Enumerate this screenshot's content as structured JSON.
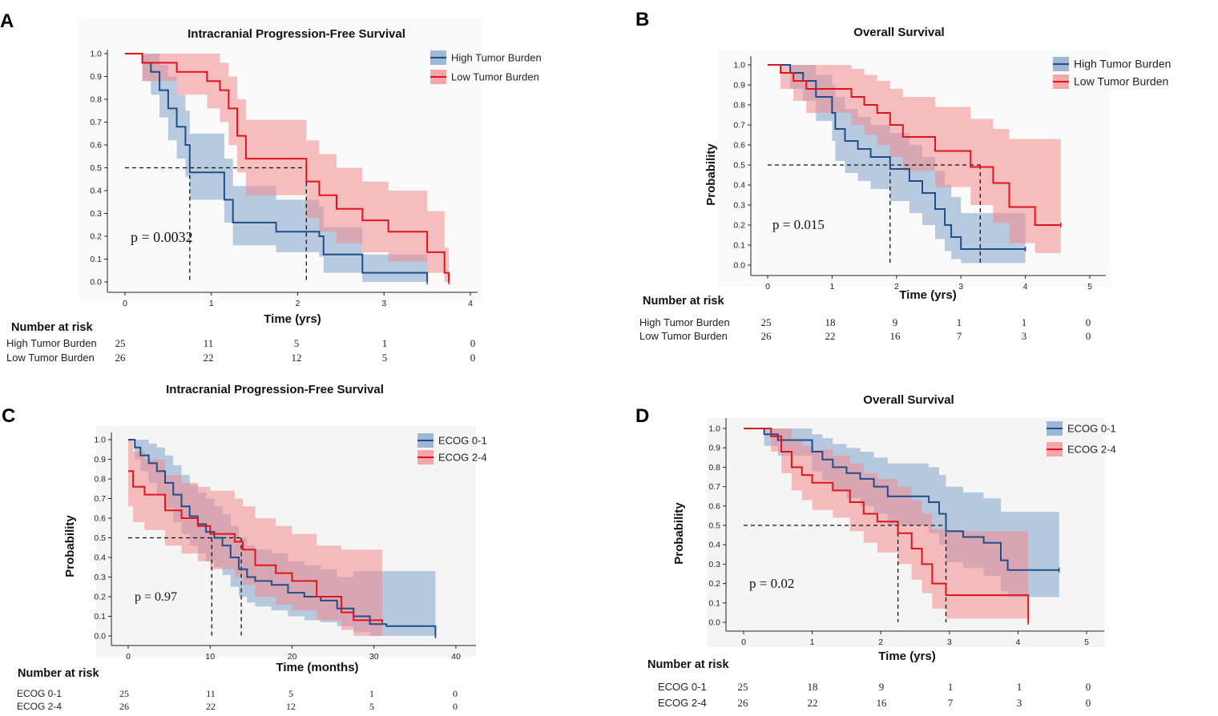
{
  "colors": {
    "blue": "#1f4e8c",
    "red": "#e0141b",
    "blue_band": "#7fa2c8",
    "red_band": "#f28b8e",
    "panel_bg": "#f5f5f5"
  },
  "number_at_risk_label": "Number at risk",
  "chart_data": [
    {
      "panel": "A",
      "type": "line",
      "title": "Intracranial Progression-Free Survival",
      "xlabel": "Time (yrs)",
      "ylabel": "",
      "xlim": [
        0,
        4
      ],
      "ylim": [
        0,
        1
      ],
      "xticks": [
        "0",
        "1",
        "2",
        "3",
        "4"
      ],
      "yticks": [
        "0.0",
        "0.1",
        "0.2",
        "0.3",
        "0.4",
        "0.5",
        "0.6",
        "0.7",
        "0.8",
        "0.9",
        "1.0"
      ],
      "grid": false,
      "shaded_background": false,
      "legend": [
        "High Tumor Burden",
        "Low Tumor Burden"
      ],
      "legend_position": "top-right",
      "pvalue": "p = 0.0032",
      "medians": [
        0.75,
        2.1
      ],
      "series": [
        {
          "name": "High Tumor Burden",
          "color": "blue",
          "x": [
            0,
            0.2,
            0.3,
            0.4,
            0.5,
            0.6,
            0.7,
            0.75,
            1.15,
            1.25,
            1.75,
            2.25,
            2.3,
            2.75,
            3.5
          ],
          "y": [
            1.0,
            0.96,
            0.92,
            0.84,
            0.76,
            0.68,
            0.6,
            0.48,
            0.36,
            0.26,
            0.22,
            0.2,
            0.12,
            0.04,
            0.0
          ],
          "lower": [
            1.0,
            0.88,
            0.82,
            0.72,
            0.62,
            0.54,
            0.46,
            0.36,
            0.26,
            0.16,
            0.13,
            0.11,
            0.04,
            0.0,
            0.0
          ],
          "upper": [
            1.0,
            1.0,
            1.0,
            0.95,
            0.9,
            0.82,
            0.75,
            0.65,
            0.54,
            0.42,
            0.36,
            0.33,
            0.24,
            0.12,
            0.1
          ]
        },
        {
          "name": "Low Tumor Burden",
          "color": "red",
          "x": [
            0,
            0.2,
            0.35,
            0.6,
            0.95,
            1.1,
            1.2,
            1.3,
            1.4,
            2.1,
            2.25,
            2.45,
            2.75,
            3.05,
            3.5,
            3.7,
            3.75
          ],
          "y": [
            1.0,
            0.96,
            0.96,
            0.92,
            0.88,
            0.84,
            0.76,
            0.64,
            0.54,
            0.44,
            0.38,
            0.32,
            0.27,
            0.22,
            0.13,
            0.04,
            0.0
          ],
          "lower": [
            1.0,
            0.88,
            0.88,
            0.82,
            0.76,
            0.7,
            0.6,
            0.48,
            0.38,
            0.28,
            0.22,
            0.17,
            0.13,
            0.09,
            0.04,
            0.0,
            0.0
          ],
          "upper": [
            1.0,
            1.0,
            1.0,
            1.0,
            1.0,
            0.96,
            0.9,
            0.8,
            0.71,
            0.62,
            0.56,
            0.5,
            0.44,
            0.4,
            0.31,
            0.15,
            0.12
          ]
        }
      ],
      "risk_table": {
        "times": [
          "0",
          "1",
          "2",
          "3",
          "4"
        ],
        "rows": [
          {
            "label": "High Tumor Burden",
            "values": [
              "25",
              "11",
              "5",
              "1",
              "0"
            ]
          },
          {
            "label": "Low Tumor Burden",
            "values": [
              "26",
              "22",
              "12",
              "5",
              "0"
            ]
          }
        ]
      }
    },
    {
      "panel": "B",
      "type": "line",
      "title": "Overall Survival",
      "xlabel": "Time (yrs)",
      "ylabel": "Probability",
      "xlim": [
        0,
        5
      ],
      "ylim": [
        0,
        1
      ],
      "xticks": [
        "0",
        "1",
        "2",
        "3",
        "4",
        "5"
      ],
      "yticks": [
        "0.0",
        "0.1",
        "0.2",
        "0.3",
        "0.4",
        "0.5",
        "0.6",
        "0.7",
        "0.8",
        "0.9",
        "1.0"
      ],
      "grid": false,
      "shaded_background": false,
      "legend": [
        "High Tumor Burden",
        "Low Tumor Burden"
      ],
      "legend_position": "top-right",
      "pvalue": "p = 0.015",
      "medians": [
        1.9,
        3.3
      ],
      "series": [
        {
          "name": "High Tumor Burden",
          "color": "blue",
          "x": [
            0,
            0.35,
            0.55,
            0.75,
            1.0,
            1.05,
            1.2,
            1.4,
            1.6,
            1.9,
            2.2,
            2.4,
            2.6,
            2.75,
            2.85,
            3.0,
            4.0
          ],
          "y": [
            1.0,
            0.96,
            0.92,
            0.84,
            0.76,
            0.68,
            0.62,
            0.58,
            0.54,
            0.48,
            0.42,
            0.36,
            0.28,
            0.2,
            0.14,
            0.08,
            0.08
          ],
          "lower": [
            1.0,
            0.88,
            0.82,
            0.72,
            0.62,
            0.52,
            0.46,
            0.42,
            0.38,
            0.32,
            0.26,
            0.2,
            0.13,
            0.07,
            0.03,
            0.01,
            0.01
          ],
          "upper": [
            1.0,
            1.0,
            1.0,
            0.95,
            0.9,
            0.84,
            0.78,
            0.74,
            0.7,
            0.66,
            0.6,
            0.54,
            0.47,
            0.4,
            0.34,
            0.26,
            0.26
          ]
        },
        {
          "name": "Low Tumor Burden",
          "color": "red",
          "x": [
            0,
            0.2,
            0.4,
            0.6,
            1.05,
            1.3,
            1.5,
            1.7,
            1.9,
            2.1,
            2.3,
            2.6,
            3.15,
            3.5,
            3.75,
            4.15,
            4.55
          ],
          "y": [
            1.0,
            0.96,
            0.92,
            0.88,
            0.88,
            0.84,
            0.8,
            0.76,
            0.7,
            0.64,
            0.64,
            0.57,
            0.49,
            0.41,
            0.29,
            0.2,
            0.2
          ],
          "lower": [
            1.0,
            0.88,
            0.82,
            0.76,
            0.76,
            0.7,
            0.65,
            0.6,
            0.54,
            0.47,
            0.47,
            0.39,
            0.3,
            0.21,
            0.11,
            0.06,
            0.06
          ],
          "upper": [
            1.0,
            1.0,
            1.0,
            1.0,
            1.0,
            0.98,
            0.95,
            0.92,
            0.88,
            0.84,
            0.84,
            0.79,
            0.73,
            0.68,
            0.63,
            0.63,
            0.63
          ]
        }
      ],
      "risk_table": {
        "times": [
          "0",
          "1",
          "2",
          "3",
          "4",
          "5"
        ],
        "rows": [
          {
            "label": "High Tumor Burden",
            "values": [
              "25",
              "18",
              "9",
              "1",
              "1",
              "0"
            ]
          },
          {
            "label": "Low Tumor Burden",
            "values": [
              "26",
              "22",
              "16",
              "7",
              "3",
              "0"
            ]
          }
        ]
      }
    },
    {
      "panel": "C",
      "type": "line",
      "title": "Intracranial Progression-Free Survival",
      "xlabel": "Time (months)",
      "ylabel": "Probability",
      "xlim": [
        0,
        40
      ],
      "ylim": [
        0,
        1
      ],
      "xticks": [
        "0",
        "10",
        "20",
        "30",
        "40"
      ],
      "yticks": [
        "0.0",
        "0.1",
        "0.2",
        "0.3",
        "0.4",
        "0.5",
        "0.6",
        "0.7",
        "0.8",
        "0.9",
        "1.0"
      ],
      "grid": false,
      "shaded_background": true,
      "legend": [
        "ECOG 0-1",
        "ECOG 2-4"
      ],
      "legend_position": "top-right",
      "pvalue": "p = 0.97",
      "medians": [
        10.2,
        13.8
      ],
      "series": [
        {
          "name": "ECOG 0-1",
          "color": "blue",
          "x": [
            0,
            0.8,
            1.5,
            2.5,
            3.5,
            4.5,
            5.5,
            6.5,
            7.5,
            8.5,
            9.5,
            10.5,
            11.5,
            12.5,
            13.5,
            14.5,
            15.5,
            17.5,
            19.5,
            21.5,
            23.5,
            25.5,
            27.5,
            29.5,
            31.5,
            37.5
          ],
          "y": [
            1.0,
            0.96,
            0.92,
            0.88,
            0.84,
            0.78,
            0.72,
            0.66,
            0.61,
            0.57,
            0.53,
            0.5,
            0.46,
            0.4,
            0.34,
            0.3,
            0.28,
            0.26,
            0.22,
            0.2,
            0.18,
            0.14,
            0.1,
            0.06,
            0.05,
            0.0
          ],
          "lower": [
            1.0,
            0.9,
            0.84,
            0.78,
            0.72,
            0.65,
            0.58,
            0.52,
            0.46,
            0.42,
            0.38,
            0.35,
            0.31,
            0.25,
            0.2,
            0.17,
            0.15,
            0.13,
            0.1,
            0.08,
            0.07,
            0.05,
            0.02,
            0.0,
            0.0,
            0.0
          ],
          "upper": [
            1.0,
            1.0,
            1.0,
            0.98,
            0.96,
            0.92,
            0.87,
            0.82,
            0.77,
            0.73,
            0.7,
            0.66,
            0.62,
            0.56,
            0.5,
            0.46,
            0.44,
            0.42,
            0.38,
            0.36,
            0.34,
            0.3,
            0.33,
            0.33,
            0.33,
            0.33
          ]
        },
        {
          "name": "ECOG 2-4",
          "color": "red",
          "x": [
            0,
            0.6,
            2.0,
            4.5,
            6.5,
            8.5,
            10.0,
            12.0,
            13.0,
            14.0,
            15.5,
            18.0,
            20.0,
            23.0,
            26.0,
            27.5,
            31.0
          ],
          "y": [
            0.84,
            0.76,
            0.72,
            0.64,
            0.6,
            0.56,
            0.52,
            0.52,
            0.48,
            0.44,
            0.36,
            0.32,
            0.28,
            0.2,
            0.12,
            0.08,
            0.07
          ],
          "lower": [
            0.66,
            0.58,
            0.54,
            0.46,
            0.42,
            0.38,
            0.34,
            0.34,
            0.3,
            0.26,
            0.2,
            0.16,
            0.13,
            0.08,
            0.03,
            0.0,
            0.0
          ],
          "upper": [
            1.0,
            0.94,
            0.9,
            0.82,
            0.78,
            0.76,
            0.74,
            0.74,
            0.7,
            0.66,
            0.6,
            0.56,
            0.52,
            0.46,
            0.44,
            0.44,
            0.44
          ]
        }
      ],
      "risk_table": {
        "times": [
          "0",
          "10",
          "20",
          "30",
          "40"
        ],
        "rows": [
          {
            "label": "ECOG 0-1",
            "values": [
              "25",
              "11",
              "5",
              "1",
              "0"
            ]
          },
          {
            "label": "ECOG 2-4",
            "values": [
              "26",
              "22",
              "12",
              "5",
              "0"
            ]
          }
        ]
      }
    },
    {
      "panel": "D",
      "type": "line",
      "title": "Overall Survival",
      "xlabel": "Time (yrs)",
      "ylabel": "Probability",
      "xlim": [
        0,
        5
      ],
      "ylim": [
        0,
        1
      ],
      "xticks": [
        "0",
        "1",
        "2",
        "3",
        "4",
        "5"
      ],
      "yticks": [
        "0.0",
        "0.1",
        "0.2",
        "0.3",
        "0.4",
        "0.5",
        "0.6",
        "0.7",
        "0.8",
        "0.9",
        "1.0"
      ],
      "grid": false,
      "shaded_background": true,
      "legend": [
        "ECOG 0-1",
        "ECOG 2-4"
      ],
      "legend_position": "top-right",
      "pvalue": "p = 0.02",
      "medians": [
        2.25,
        2.95
      ],
      "series": [
        {
          "name": "ECOG 0-1",
          "color": "blue",
          "x": [
            0,
            0.3,
            0.5,
            0.8,
            1.0,
            1.15,
            1.3,
            1.5,
            1.7,
            1.9,
            2.1,
            2.7,
            2.85,
            2.95,
            3.2,
            3.5,
            3.75,
            3.85,
            4.6
          ],
          "y": [
            1.0,
            0.97,
            0.94,
            0.94,
            0.88,
            0.84,
            0.8,
            0.77,
            0.74,
            0.7,
            0.65,
            0.62,
            0.56,
            0.47,
            0.44,
            0.41,
            0.32,
            0.27,
            0.27
          ],
          "lower": [
            1.0,
            0.91,
            0.86,
            0.86,
            0.78,
            0.73,
            0.68,
            0.64,
            0.6,
            0.56,
            0.5,
            0.46,
            0.4,
            0.31,
            0.28,
            0.24,
            0.16,
            0.13,
            0.13
          ],
          "upper": [
            1.0,
            1.0,
            1.0,
            1.0,
            0.97,
            0.95,
            0.92,
            0.9,
            0.88,
            0.85,
            0.82,
            0.8,
            0.76,
            0.7,
            0.67,
            0.64,
            0.57,
            0.57,
            0.57
          ]
        },
        {
          "name": "ECOG 2-4",
          "color": "red",
          "x": [
            0,
            0.4,
            0.55,
            0.7,
            0.85,
            1.0,
            1.3,
            1.55,
            1.75,
            1.95,
            2.25,
            2.45,
            2.6,
            2.75,
            2.95,
            3.3,
            4.15
          ],
          "y": [
            1.0,
            0.96,
            0.88,
            0.8,
            0.76,
            0.72,
            0.68,
            0.62,
            0.56,
            0.52,
            0.46,
            0.38,
            0.3,
            0.2,
            0.14,
            0.14,
            0.0
          ],
          "lower": [
            1.0,
            0.88,
            0.77,
            0.68,
            0.63,
            0.58,
            0.54,
            0.47,
            0.41,
            0.36,
            0.3,
            0.22,
            0.15,
            0.07,
            0.02,
            0.02,
            0.0
          ],
          "upper": [
            1.0,
            1.0,
            1.0,
            0.94,
            0.91,
            0.89,
            0.86,
            0.82,
            0.77,
            0.74,
            0.7,
            0.63,
            0.56,
            0.48,
            0.47,
            0.47,
            0.47
          ]
        }
      ],
      "risk_table": {
        "times": [
          "0",
          "1",
          "2",
          "3",
          "4",
          "5"
        ],
        "rows": [
          {
            "label": "ECOG 0-1",
            "values": [
              "25",
              "18",
              "9",
              "1",
              "1",
              "0"
            ]
          },
          {
            "label": "ECOG 2-4",
            "values": [
              "26",
              "22",
              "16",
              "7",
              "3",
              "0"
            ]
          }
        ]
      }
    }
  ]
}
